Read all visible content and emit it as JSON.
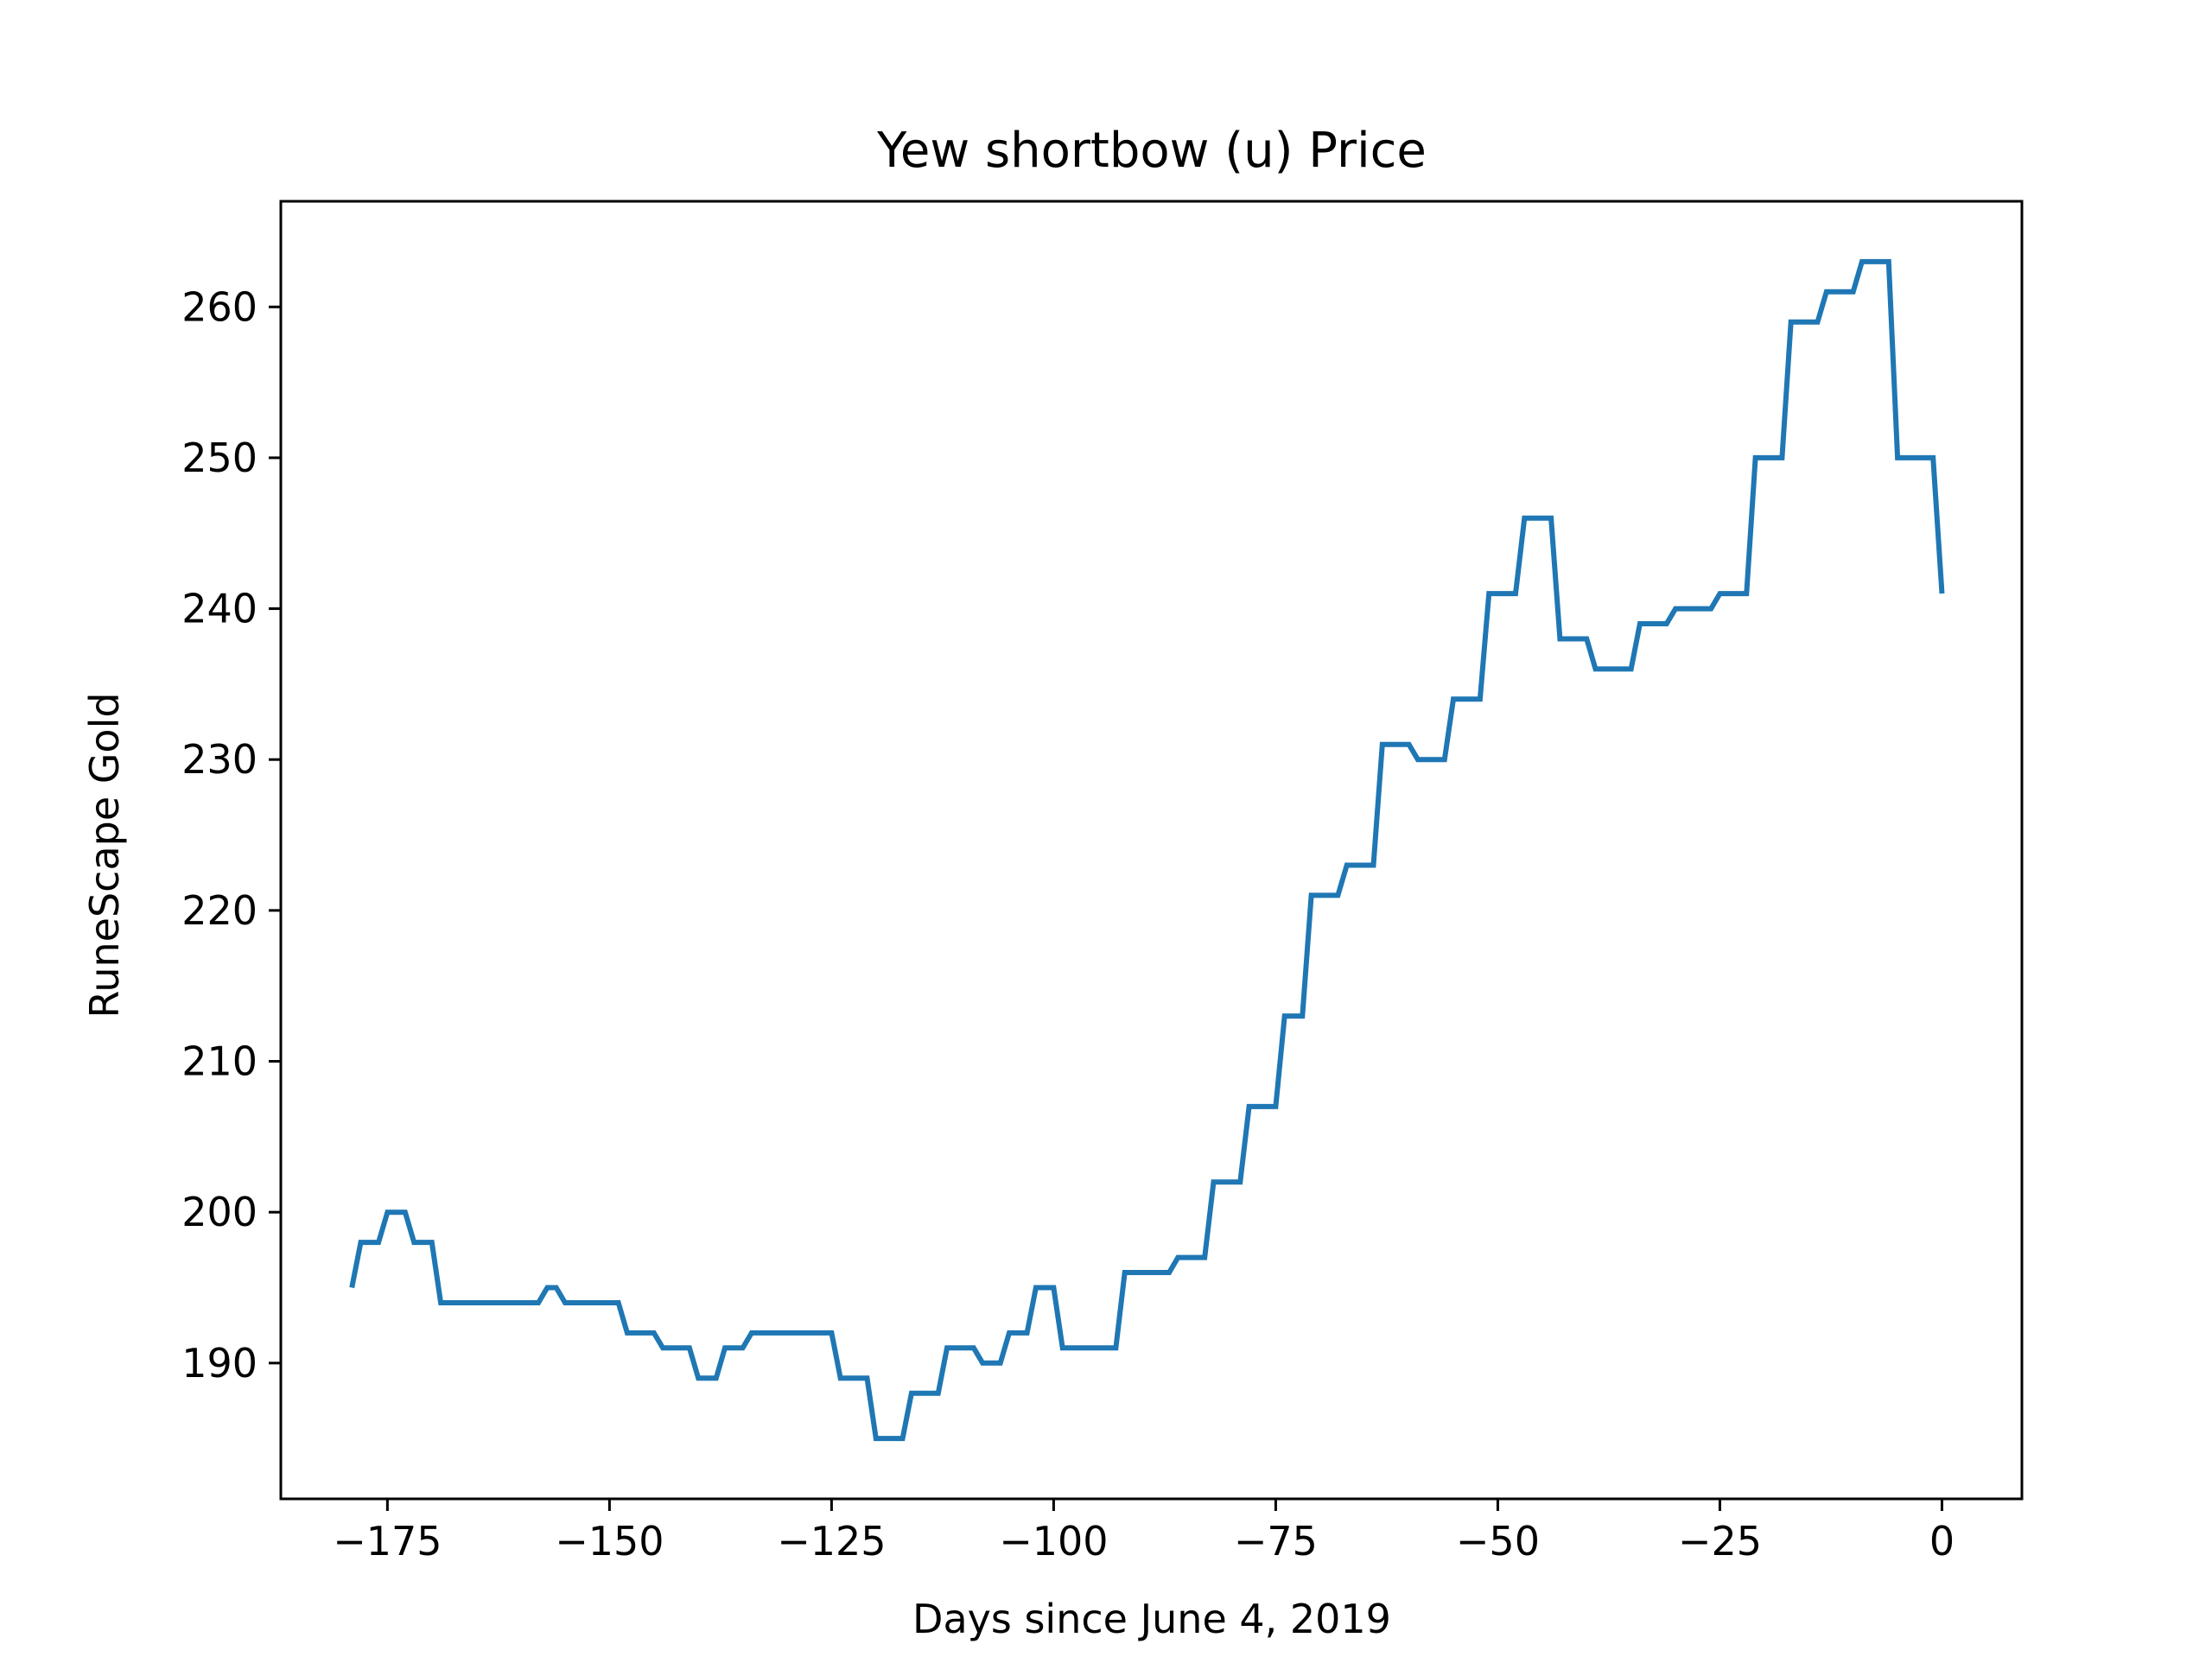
{
  "chart_data": {
    "type": "line",
    "title": "Yew shortbow (u) Price",
    "xlabel": "Days since June 4, 2019",
    "ylabel": "RuneScape Gold",
    "xlim": [
      -187,
      9
    ],
    "ylim": [
      181,
      267
    ],
    "x_ticks": [
      -175,
      -150,
      -125,
      -100,
      -75,
      -50,
      -25,
      0
    ],
    "x_tick_labels": [
      "−175",
      "−150",
      "−125",
      "−100",
      "−75",
      "−50",
      "−25",
      "0"
    ],
    "y_ticks": [
      190,
      200,
      210,
      220,
      230,
      240,
      250,
      260
    ],
    "y_tick_labels": [
      "190",
      "200",
      "210",
      "220",
      "230",
      "240",
      "250",
      "260"
    ],
    "grid": false,
    "series": [
      {
        "color": "#1f77b4",
        "x": [
          -179,
          -178,
          -176,
          -175,
          -173,
          -172,
          -170,
          -169,
          -158,
          -157,
          -156,
          -155,
          -149,
          -148,
          -145,
          -144,
          -141,
          -140,
          -138,
          -137,
          -135,
          -134,
          -125,
          -124,
          -121,
          -120,
          -117,
          -116,
          -113,
          -112,
          -109,
          -108,
          -106,
          -105,
          -103,
          -102,
          -100,
          -99,
          -93,
          -92,
          -87,
          -86,
          -83,
          -82,
          -79,
          -78,
          -75,
          -74,
          -72,
          -71,
          -68,
          -67,
          -64,
          -63,
          -60,
          -59,
          -56,
          -55,
          -52,
          -51,
          -48,
          -47,
          -44,
          -43,
          -40,
          -39,
          -35,
          -34,
          -31,
          -30,
          -26,
          -25,
          -22,
          -21,
          -18,
          -17,
          -14,
          -13,
          -10,
          -9,
          -6,
          -5,
          -1,
          0
        ],
        "y": [
          195,
          198,
          198,
          200,
          200,
          198,
          198,
          194,
          194,
          195,
          195,
          194,
          194,
          192,
          192,
          191,
          191,
          189,
          189,
          191,
          191,
          192,
          192,
          189,
          189,
          185,
          185,
          188,
          188,
          191,
          191,
          190,
          190,
          192,
          192,
          195,
          195,
          191,
          191,
          196,
          196,
          197,
          197,
          202,
          202,
          207,
          207,
          213,
          213,
          221,
          221,
          223,
          223,
          231,
          231,
          230,
          230,
          234,
          234,
          241,
          241,
          246,
          246,
          238,
          238,
          236,
          236,
          239,
          239,
          240,
          240,
          241,
          241,
          250,
          250,
          259,
          259,
          261,
          261,
          263,
          263,
          250,
          250,
          241
        ]
      }
    ]
  }
}
